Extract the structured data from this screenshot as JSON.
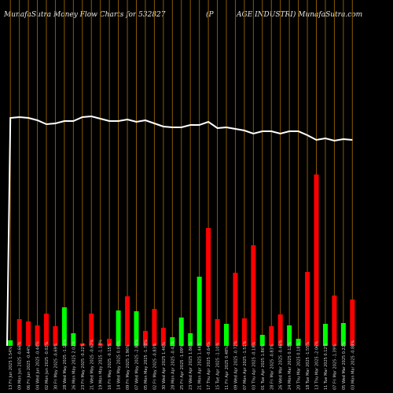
{
  "header": {
    "left": "MunafaSutra  Money Flow  Charts for 532827",
    "middle": "(P",
    "right": "AGE INDUSTRI) MunafaSutra.com"
  },
  "chart_data": {
    "type": "bar",
    "title": "MunafaSutra  Money Flow  Charts for 532827 (PAGE INDUSTRI) MunafaSutra.com",
    "series": [
      {
        "name": "volume",
        "values": [
          7,
          34,
          31,
          26,
          41,
          25,
          49,
          16,
          3,
          41,
          3,
          9,
          45,
          63,
          44,
          19,
          47,
          23,
          11,
          36,
          16,
          88,
          150,
          34,
          28,
          93,
          35,
          128,
          14,
          25,
          40,
          26,
          9,
          94,
          218,
          28,
          64,
          29,
          59
        ]
      },
      {
        "name": "line",
        "values": [
          150,
          151,
          150,
          147,
          142,
          143,
          146,
          146,
          151,
          152,
          149,
          146,
          146,
          148,
          145,
          147,
          143,
          139,
          138,
          138,
          141,
          141,
          145,
          137,
          138,
          136,
          134,
          130,
          133,
          133,
          130,
          133,
          133,
          128,
          122,
          124,
          121,
          123,
          122
        ]
      }
    ],
    "bar_colors": [
      "#00ff00",
      "#ff0000",
      "#ff0000",
      "#ff0000",
      "#ff0000",
      "#ff0000",
      "#00ff00",
      "#00ff00",
      "#ff0000",
      "#ff0000",
      "#ff0000",
      "#ff0000",
      "#00ff00",
      "#ff0000",
      "#00ff00",
      "#ff0000",
      "#ff0000",
      "#ff0000",
      "#00ff00",
      "#00ff00",
      "#00ff00",
      "#00ff00",
      "#ff0000",
      "#ff0000",
      "#00ff00",
      "#ff0000",
      "#ff0000",
      "#ff0000",
      "#00ff00",
      "#ff0000",
      "#ff0000",
      "#00ff00",
      "#00ff00",
      "#ff0000",
      "#ff0000",
      "#00ff00",
      "#ff0000",
      "#00ff00",
      "#ff0000"
    ],
    "categories": [
      "13 Fri Jun 2025 1.54%",
      "09 Mon Jun 2025 -0.66%",
      "06 Fri Jun 2025 -0.44%",
      "04 Wed Jun 2025 -0.44%",
      "02 Mon Jun 2025 -0.02%",
      "30 Fri May 2025 -0.69%",
      "28 Wed May 2025 -1.18%",
      "26 Mon May 2025 2.02%",
      "23 Fri May 2025 -0.22%",
      "21 Wed May 2025 -0.67%",
      "19 Mon May 2025 -1.14%",
      "16 Fri May 2025 -0.15%",
      "14 Wed May 2025 0.08%",
      "09 Fri May 2025 1.96%",
      "07 Wed May 2025 -2.84%",
      "05 Mon May 2025 -1.78%",
      "02 Fri May 2025 -0.83%",
      "30 Wed Apr 2025 1.46%",
      "28 Mon Apr 2025 -0.42%",
      "25 Fri Apr 2025 -1.09%",
      "23 Wed Apr 2025 1.86%",
      "21 Mon Apr 2025 1.44%",
      "17 Thu Apr 2025 -0.64%",
      "15 Tue Apr 2025 -1.10%",
      "11 Fri Apr 2025 0.48%",
      "09 Wed Apr 2025 -0.72%",
      "07 Mon Apr 2025 -1.51%",
      "03 Thu Apr 2025 -0.18%",
      "01 Tue Apr 2025 1.86%",
      "28 Fri Mar 2025 -0.83%",
      "26 Wed Mar 2025 -0.46%",
      "24 Mon Mar 2025 0.12%",
      "20 Thu Mar 2025 0.18%",
      "18 Tue Mar 2025 -1.55%",
      "13 Thu Mar 2025 -2.06%",
      "11 Tue Mar 2025 0.12%",
      "07 Fri Mar 2025 -1.39%",
      "05 Wed Mar 2025 0.22%",
      "03 Mon Mar 2025 -0.88%"
    ]
  }
}
